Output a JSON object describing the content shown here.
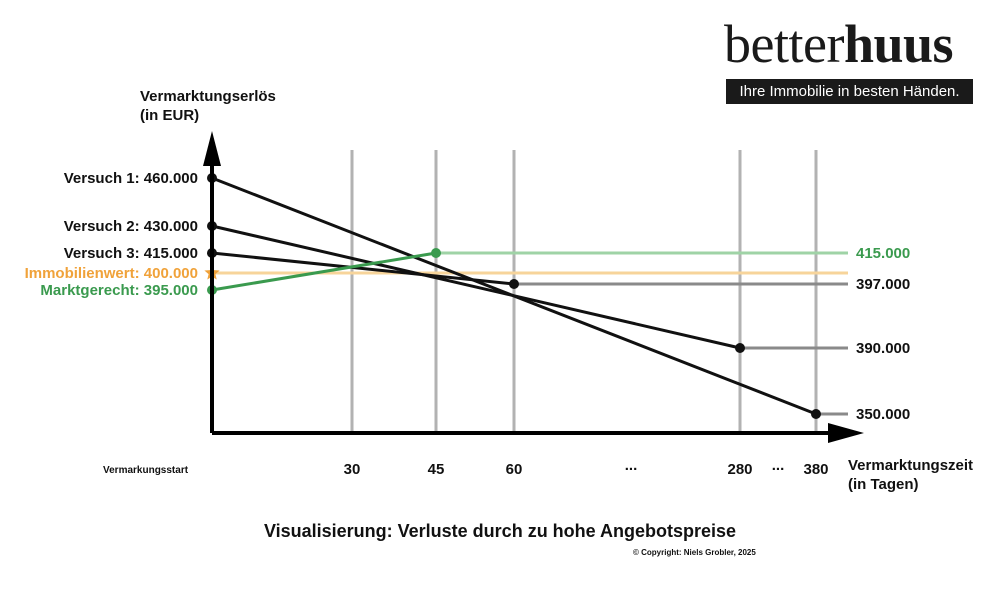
{
  "logo": {
    "word_light": "better",
    "word_bold": "huus",
    "tagline": "Ihre Immobilie in besten Händen."
  },
  "chart_data": {
    "type": "line",
    "ylabel": [
      "Vermarktungserlös",
      "(in EUR)"
    ],
    "xlabel": [
      "Vermarktungszeit",
      "(in Tagen)"
    ],
    "x_start_label": "Vermarkungsstart",
    "x_ticks": [
      "30",
      "45",
      "60",
      "...",
      "280",
      "...",
      "380"
    ],
    "caption": "Visualisierung: Verluste durch zu hohe Angebotspreise",
    "copyright": "© Copyright: Niels Grobler, 2025",
    "reference_line": {
      "name": "Immobilienwert",
      "label": "Immobilienwert: 400.000",
      "value": 400000,
      "color": "#f0a23a"
    },
    "series": [
      {
        "name": "Versuch 1",
        "label": "Versuch 1: 460.000",
        "color": "#111111",
        "start": 460000,
        "end_day": "380",
        "end": 350000,
        "end_label": "350.000"
      },
      {
        "name": "Versuch 2",
        "label": "Versuch 2: 430.000",
        "color": "#111111",
        "start": 430000,
        "end_day": "280",
        "end": 390000,
        "end_label": "390.000"
      },
      {
        "name": "Versuch 3",
        "label": "Versuch 3: 415.000",
        "color": "#111111",
        "start": 415000,
        "end_day": "60",
        "end": 397000,
        "end_label": "397.000"
      },
      {
        "name": "Marktgerecht",
        "label": "Marktgerecht: 395.000",
        "color": "#3a9a4e",
        "start": 395000,
        "end_day": "45",
        "end": 415000,
        "end_label": "415.000"
      }
    ]
  }
}
